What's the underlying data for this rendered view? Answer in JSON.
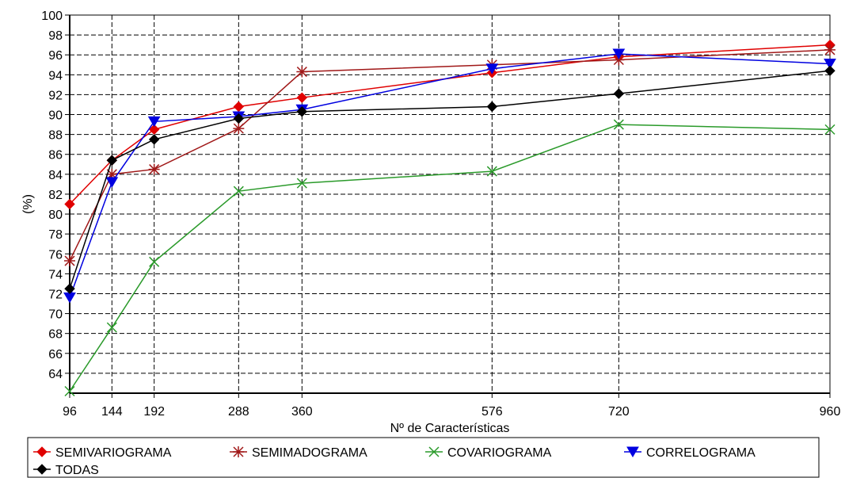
{
  "chart_data": {
    "type": "line",
    "title": "",
    "xlabel": "Nº de Características",
    "ylabel": "(%)",
    "x": [
      96,
      144,
      192,
      288,
      360,
      576,
      720,
      960
    ],
    "x_ticks": [
      "96",
      "144",
      "192",
      "288",
      "360",
      "576",
      "720",
      "960"
    ],
    "ylim": [
      62,
      100
    ],
    "y_ticks": [
      64,
      66,
      68,
      70,
      72,
      74,
      76,
      78,
      80,
      82,
      84,
      86,
      88,
      90,
      92,
      94,
      96,
      98,
      100
    ],
    "grid": true,
    "legend_position": "bottom",
    "series": [
      {
        "name": "SEMIVARIOGRAMA",
        "color": "#e00000",
        "marker": "diamond",
        "values": [
          81.0,
          85.4,
          88.5,
          90.8,
          91.7,
          94.2,
          95.8,
          97.0
        ]
      },
      {
        "name": "SEMIMADOGRAMA",
        "color": "#a01818",
        "marker": "star",
        "values": [
          75.3,
          84.0,
          84.5,
          88.6,
          94.3,
          95.0,
          95.5,
          96.5
        ]
      },
      {
        "name": "COVARIOGRAMA",
        "color": "#2a9a2a",
        "marker": "x",
        "values": [
          62.2,
          68.6,
          75.2,
          82.3,
          83.1,
          84.3,
          89.0,
          88.5
        ]
      },
      {
        "name": "CORRELOGRAMA",
        "color": "#0000e0",
        "marker": "triangle-down",
        "values": [
          71.6,
          83.2,
          89.3,
          89.8,
          90.5,
          94.6,
          96.1,
          95.1
        ]
      },
      {
        "name": "TODAS",
        "color": "#000000",
        "marker": "diamond",
        "values": [
          72.5,
          85.4,
          87.5,
          89.6,
          90.3,
          90.8,
          92.1,
          94.4
        ]
      }
    ]
  }
}
